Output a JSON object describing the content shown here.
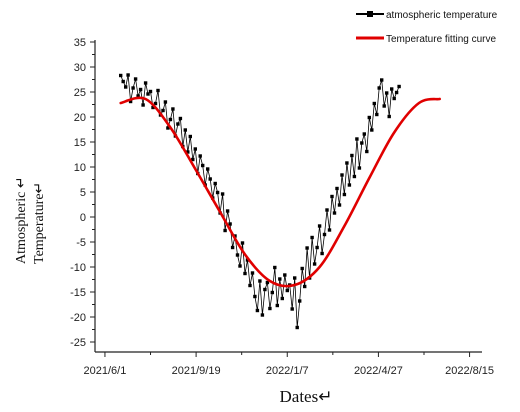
{
  "chart_data": {
    "type": "line",
    "title": "",
    "xlabel": "Dates↵",
    "ylabel_line1": "Atmospheric ↵",
    "ylabel_line2": "Temperature↵",
    "xlim": [
      "2021-05-20",
      "2022-08-30"
    ],
    "ylim": [
      -27,
      35
    ],
    "x_ticks": [
      "2021-06-01",
      "2021-09-19",
      "2022-01-07",
      "2022-04-27",
      "2022-08-15"
    ],
    "x_tick_labels": [
      "2021/6/1",
      "2021/9/19",
      "2022/1/7",
      "2022/4/27",
      "2022/8/15"
    ],
    "y_ticks": [
      -25,
      -20,
      -15,
      -10,
      -5,
      0,
      5,
      10,
      15,
      20,
      25,
      30,
      35
    ],
    "grid": false,
    "legend_position": "top-right",
    "series": [
      {
        "name": "atmospheric temperature",
        "style": "line-with-square-markers",
        "color": "#000000",
        "x_start": "2021-06-20",
        "x_step_days": 3,
        "values": [
          28.3,
          27.1,
          26.0,
          28.4,
          23.1,
          25.8,
          27.6,
          24.2,
          25.5,
          22.4,
          26.8,
          24.6,
          25.1,
          21.9,
          22.7,
          25.3,
          20.4,
          21.3,
          23.0,
          17.8,
          19.5,
          21.6,
          16.2,
          18.6,
          19.7,
          14.1,
          17.4,
          13.0,
          16.1,
          11.5,
          13.6,
          8.7,
          12.2,
          10.3,
          6.4,
          9.6,
          7.6,
          3.8,
          6.7,
          4.9,
          0.8,
          4.6,
          -2.7,
          1.2,
          -1.4,
          -6.1,
          -3.8,
          -7.6,
          -9.8,
          -5.2,
          -11.3,
          -8.6,
          -13.7,
          -11.2,
          -15.9,
          -18.7,
          -12.8,
          -19.6,
          -14.5,
          -13.1,
          -18.3,
          -15.1,
          -10.1,
          -17.7,
          -12.4,
          -16.3,
          -11.6,
          -14.7,
          -13.6,
          -18.4,
          -12.2,
          -22.1,
          -16.8,
          -10.3,
          -13.9,
          -6.2,
          -12.2,
          -4.1,
          -9.4,
          -6.1,
          -1.8,
          -7.3,
          -3.5,
          1.4,
          -2.6,
          4.1,
          0.8,
          5.7,
          2.4,
          8.4,
          4.5,
          10.8,
          6.4,
          12.3,
          8.1,
          15.6,
          9.8,
          14.8,
          16.6,
          13.1,
          19.9,
          17.4,
          22.7,
          20.5,
          25.8,
          27.4,
          22.2,
          24.8,
          20.1,
          25.6,
          23.7,
          24.9,
          26.1
        ]
      },
      {
        "name": "Temperature fitting curve",
        "style": "smooth-line",
        "color": "#e00000",
        "x": [
          "2021-06-20",
          "2021-07-20",
          "2021-08-19",
          "2021-09-18",
          "2021-10-18",
          "2021-11-17",
          "2021-12-17",
          "2022-01-16",
          "2022-02-15",
          "2022-03-17",
          "2022-04-16",
          "2022-05-16",
          "2022-06-15",
          "2022-07-10"
        ],
        "values": [
          22.8,
          23.6,
          17.9,
          9.6,
          1.0,
          -7.5,
          -12.8,
          -13.6,
          -10.0,
          -1.8,
          7.8,
          16.9,
          22.8,
          23.6
        ]
      }
    ]
  }
}
